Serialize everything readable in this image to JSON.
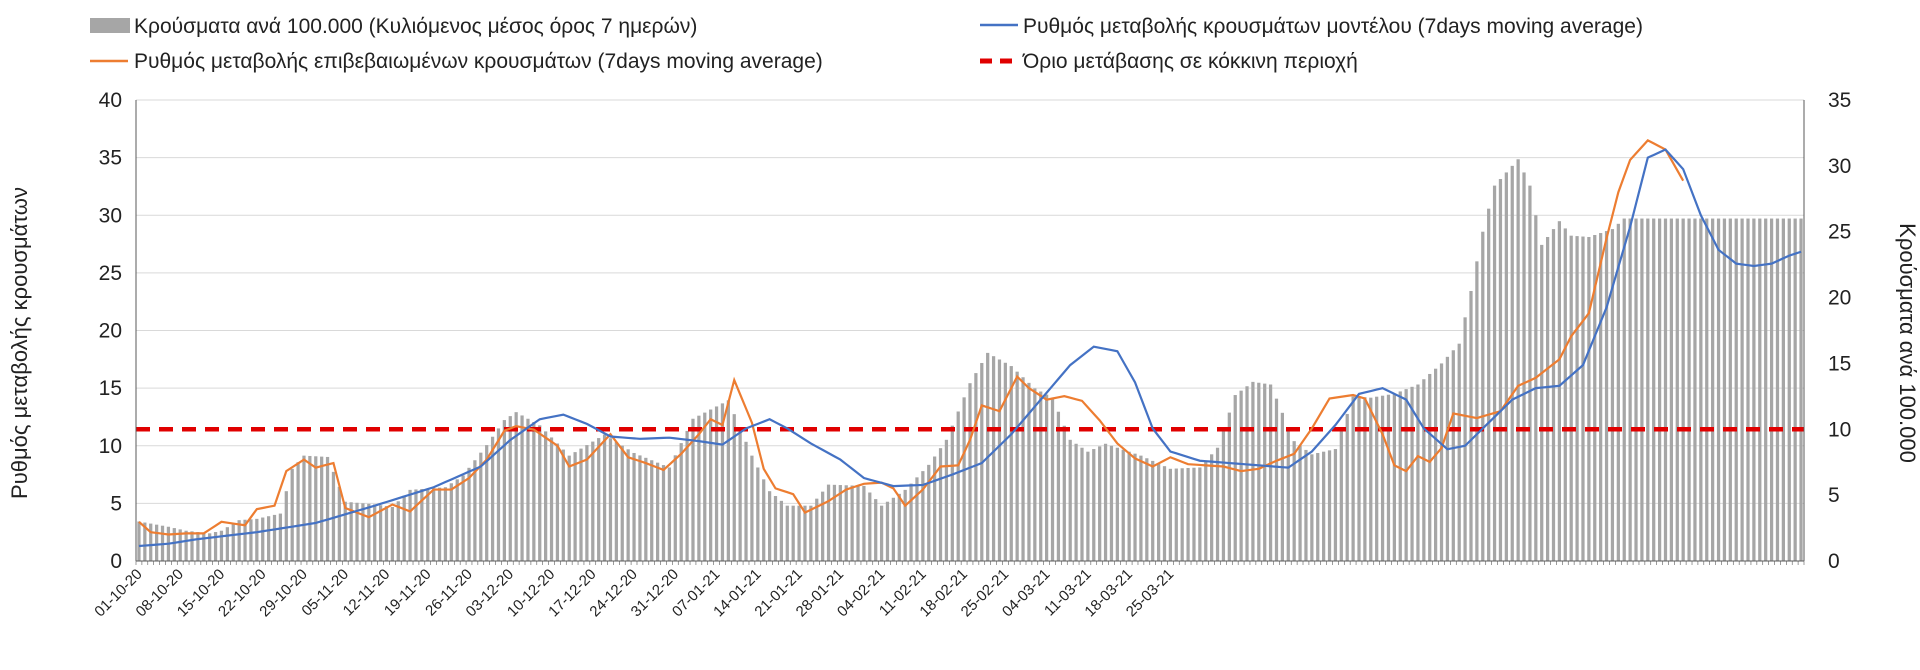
{
  "chart_data": {
    "type": "bar+line",
    "legend": {
      "placement": "top",
      "entries": [
        {
          "key": "bars",
          "label": "Κρούσματα ανά 100.000 (Κυλιόμενος μέσος όρος 7 ημερών)",
          "color": "#a6a6a6"
        },
        {
          "key": "model",
          "label": "Ρυθμός μεταβολής κρουσμάτων μοντέλου (7days moving average)",
          "color": "#4472c4"
        },
        {
          "key": "confirmed",
          "label": "Ρυθμός μεταβολής επιβεβαιωμένων κρουσμάτων (7days moving average)",
          "color": "#ed7d31"
        },
        {
          "key": "threshold",
          "label": "Όριο μετάβασης σε κόκκινη περιοχή",
          "color": "#e00000"
        }
      ]
    },
    "y_left": {
      "label": "Ρυθμός μεταβολής κρουσμάτων",
      "min": 0,
      "max": 40,
      "ticks": [
        "0",
        "5",
        "10",
        "15",
        "20",
        "25",
        "30",
        "35",
        "40"
      ]
    },
    "y_right": {
      "label": "Κρούσματα ανά 100.000",
      "min": 0,
      "max": 35,
      "ticks": [
        "0",
        "5",
        "10",
        "15",
        "20",
        "25",
        "30",
        "35"
      ]
    },
    "x_start": "2020-10-01",
    "x_tick_labels": [
      "01-10-20",
      "08-10-20",
      "15-10-20",
      "22-10-20",
      "29-10-20",
      "05-11-20",
      "12-11-20",
      "19-11-20",
      "26-11-20",
      "03-12-20",
      "10-12-20",
      "17-12-20",
      "24-12-20",
      "31-12-20",
      "07-01-21",
      "14-01-21",
      "21-01-21",
      "28-01-21",
      "04-02-21",
      "11-02-21",
      "18-02-21",
      "25-02-21",
      "04-03-21",
      "11-03-21",
      "18-03-21",
      "25-03-21"
    ],
    "grid": true,
    "threshold_right_axis": 10,
    "bar_anchors": [
      [
        0,
        3
      ],
      [
        5,
        2.6
      ],
      [
        8,
        2.3
      ],
      [
        12,
        2.1
      ],
      [
        14,
        2.3
      ],
      [
        17,
        3.1
      ],
      [
        20,
        3.2
      ],
      [
        24,
        3.6
      ],
      [
        26,
        7
      ],
      [
        28,
        8
      ],
      [
        32,
        7.9
      ],
      [
        35,
        4.5
      ],
      [
        40,
        4.3
      ],
      [
        43,
        4.1
      ],
      [
        46,
        5.4
      ],
      [
        52,
        5.6
      ],
      [
        55,
        6.5
      ],
      [
        59,
        8.8
      ],
      [
        62,
        10.7
      ],
      [
        64,
        11.3
      ],
      [
        68,
        10.3
      ],
      [
        73,
        8
      ],
      [
        79,
        9.6
      ],
      [
        84,
        8.2
      ],
      [
        90,
        7.1
      ],
      [
        94,
        10.8
      ],
      [
        100,
        12.2
      ],
      [
        104,
        8
      ],
      [
        107,
        5.3
      ],
      [
        110,
        4.2
      ],
      [
        114,
        4.2
      ],
      [
        117,
        5.8
      ],
      [
        123,
        5.7
      ],
      [
        126,
        4.2
      ],
      [
        130,
        5.4
      ],
      [
        134,
        7.3
      ],
      [
        137,
        9.2
      ],
      [
        141,
        13.5
      ],
      [
        144,
        15.8
      ],
      [
        148,
        14.8
      ],
      [
        152,
        13.1
      ],
      [
        155,
        12.4
      ],
      [
        158,
        9.2
      ],
      [
        161,
        8.3
      ],
      [
        164,
        8.9
      ],
      [
        170,
        8
      ],
      [
        175,
        7
      ],
      [
        180,
        7.1
      ],
      [
        183,
        8.6
      ],
      [
        186,
        12.6
      ],
      [
        189,
        13.6
      ],
      [
        192,
        13.4
      ],
      [
        196,
        9.1
      ],
      [
        199,
        8.1
      ],
      [
        203,
        8.5
      ],
      [
        206,
        12.5
      ],
      [
        209,
        12.4
      ],
      [
        213,
        12.7
      ],
      [
        217,
        13.4
      ],
      [
        221,
        15
      ],
      [
        224,
        16.5
      ],
      [
        226,
        20.5
      ],
      [
        228,
        25
      ],
      [
        230,
        28.5
      ],
      [
        233,
        30
      ],
      [
        234,
        30.5
      ],
      [
        236,
        28.5
      ],
      [
        238,
        24
      ],
      [
        241,
        25.8
      ],
      [
        243,
        24.7
      ],
      [
        246,
        24.6
      ],
      [
        250,
        25.2
      ],
      [
        252,
        26
      ]
    ],
    "confirmed_anchors": [
      [
        0,
        3.4
      ],
      [
        2,
        2.5
      ],
      [
        5,
        2.3
      ],
      [
        8,
        2.4
      ],
      [
        11,
        2.4
      ],
      [
        14,
        3.4
      ],
      [
        18,
        3.1
      ],
      [
        20,
        4.5
      ],
      [
        23,
        4.8
      ],
      [
        25,
        7.8
      ],
      [
        28,
        8.8
      ],
      [
        30,
        8.1
      ],
      [
        33,
        8.5
      ],
      [
        35,
        4.6
      ],
      [
        39,
        3.8
      ],
      [
        43,
        4.9
      ],
      [
        46,
        4.3
      ],
      [
        50,
        6.2
      ],
      [
        53,
        6.2
      ],
      [
        56,
        7.2
      ],
      [
        59,
        8.8
      ],
      [
        62,
        11.3
      ],
      [
        64,
        11.7
      ],
      [
        67,
        11.4
      ],
      [
        71,
        10
      ],
      [
        73,
        8.2
      ],
      [
        76,
        8.8
      ],
      [
        80,
        11
      ],
      [
        83,
        9
      ],
      [
        86,
        8.5
      ],
      [
        89,
        7.9
      ],
      [
        92,
        9.3
      ],
      [
        95,
        11
      ],
      [
        97,
        12.3
      ],
      [
        99,
        11.8
      ],
      [
        101,
        15.7
      ],
      [
        104,
        12
      ],
      [
        106,
        8
      ],
      [
        108,
        6.3
      ],
      [
        111,
        5.8
      ],
      [
        113,
        4.2
      ],
      [
        117,
        5.2
      ],
      [
        120,
        6.2
      ],
      [
        123,
        6.7
      ],
      [
        126,
        6.8
      ],
      [
        128,
        6.3
      ],
      [
        130,
        4.8
      ],
      [
        133,
        6.2
      ],
      [
        136,
        8.2
      ],
      [
        139,
        8.3
      ],
      [
        141,
        10.5
      ],
      [
        143,
        13.5
      ],
      [
        146,
        13
      ],
      [
        149,
        16
      ],
      [
        151,
        15
      ],
      [
        154,
        14
      ],
      [
        157,
        14.3
      ],
      [
        160,
        13.9
      ],
      [
        163,
        12.2
      ],
      [
        166,
        10.2
      ],
      [
        169,
        8.9
      ],
      [
        172,
        8.2
      ],
      [
        175,
        9
      ],
      [
        178,
        8.4
      ],
      [
        181,
        8.3
      ],
      [
        184,
        8.2
      ],
      [
        187,
        7.8
      ],
      [
        190,
        8
      ],
      [
        193,
        8.7
      ],
      [
        196,
        9.3
      ],
      [
        199,
        11.5
      ],
      [
        202,
        14.1
      ],
      [
        206,
        14.4
      ],
      [
        208,
        14.1
      ],
      [
        211,
        11
      ],
      [
        213,
        8.3
      ],
      [
        215,
        7.8
      ],
      [
        217,
        9.1
      ],
      [
        219,
        8.6
      ],
      [
        221,
        9.8
      ],
      [
        223,
        12.8
      ],
      [
        227,
        12.4
      ],
      [
        231,
        13
      ],
      [
        234,
        15.2
      ],
      [
        237,
        15.9
      ],
      [
        241,
        17.5
      ],
      [
        243,
        19.5
      ],
      [
        246,
        21.5
      ],
      [
        249,
        28
      ],
      [
        251,
        32
      ],
      [
        253,
        34.8
      ],
      [
        256,
        36.5
      ],
      [
        259,
        35.7
      ],
      [
        262,
        33
      ]
    ],
    "model_anchors": [
      [
        0,
        1.3
      ],
      [
        5,
        1.5
      ],
      [
        10,
        1.9
      ],
      [
        20,
        2.5
      ],
      [
        30,
        3.3
      ],
      [
        40,
        4.8
      ],
      [
        50,
        6.4
      ],
      [
        58,
        8.2
      ],
      [
        63,
        10.5
      ],
      [
        68,
        12.3
      ],
      [
        72,
        12.7
      ],
      [
        76,
        11.9
      ],
      [
        80,
        10.8
      ],
      [
        85,
        10.6
      ],
      [
        90,
        10.7
      ],
      [
        95,
        10.4
      ],
      [
        99,
        10.1
      ],
      [
        103,
        11.5
      ],
      [
        107,
        12.3
      ],
      [
        110,
        11.5
      ],
      [
        114,
        10.2
      ],
      [
        119,
        8.8
      ],
      [
        123,
        7.2
      ],
      [
        128,
        6.5
      ],
      [
        133,
        6.6
      ],
      [
        138,
        7.5
      ],
      [
        143,
        8.5
      ],
      [
        148,
        11
      ],
      [
        153,
        14
      ],
      [
        158,
        17
      ],
      [
        162,
        18.6
      ],
      [
        166,
        18.2
      ],
      [
        169,
        15.5
      ],
      [
        172,
        11.5
      ],
      [
        175,
        9.5
      ],
      [
        180,
        8.7
      ],
      [
        185,
        8.5
      ],
      [
        190,
        8.3
      ],
      [
        195,
        8.1
      ],
      [
        199,
        9.5
      ],
      [
        203,
        11.8
      ],
      [
        207,
        14.5
      ],
      [
        211,
        15
      ],
      [
        215,
        14
      ],
      [
        218,
        11.5
      ],
      [
        222,
        9.7
      ],
      [
        225,
        10
      ],
      [
        229,
        12
      ],
      [
        233,
        14
      ],
      [
        237,
        15
      ],
      [
        241,
        15.2
      ],
      [
        245,
        17
      ],
      [
        249,
        22
      ],
      [
        253,
        29
      ],
      [
        256,
        35
      ],
      [
        259,
        35.7
      ],
      [
        262,
        34
      ],
      [
        265,
        30
      ],
      [
        268,
        27
      ],
      [
        271,
        25.8
      ],
      [
        274,
        25.6
      ],
      [
        277,
        25.8
      ],
      [
        280,
        26.5
      ],
      [
        283,
        27
      ]
    ]
  }
}
